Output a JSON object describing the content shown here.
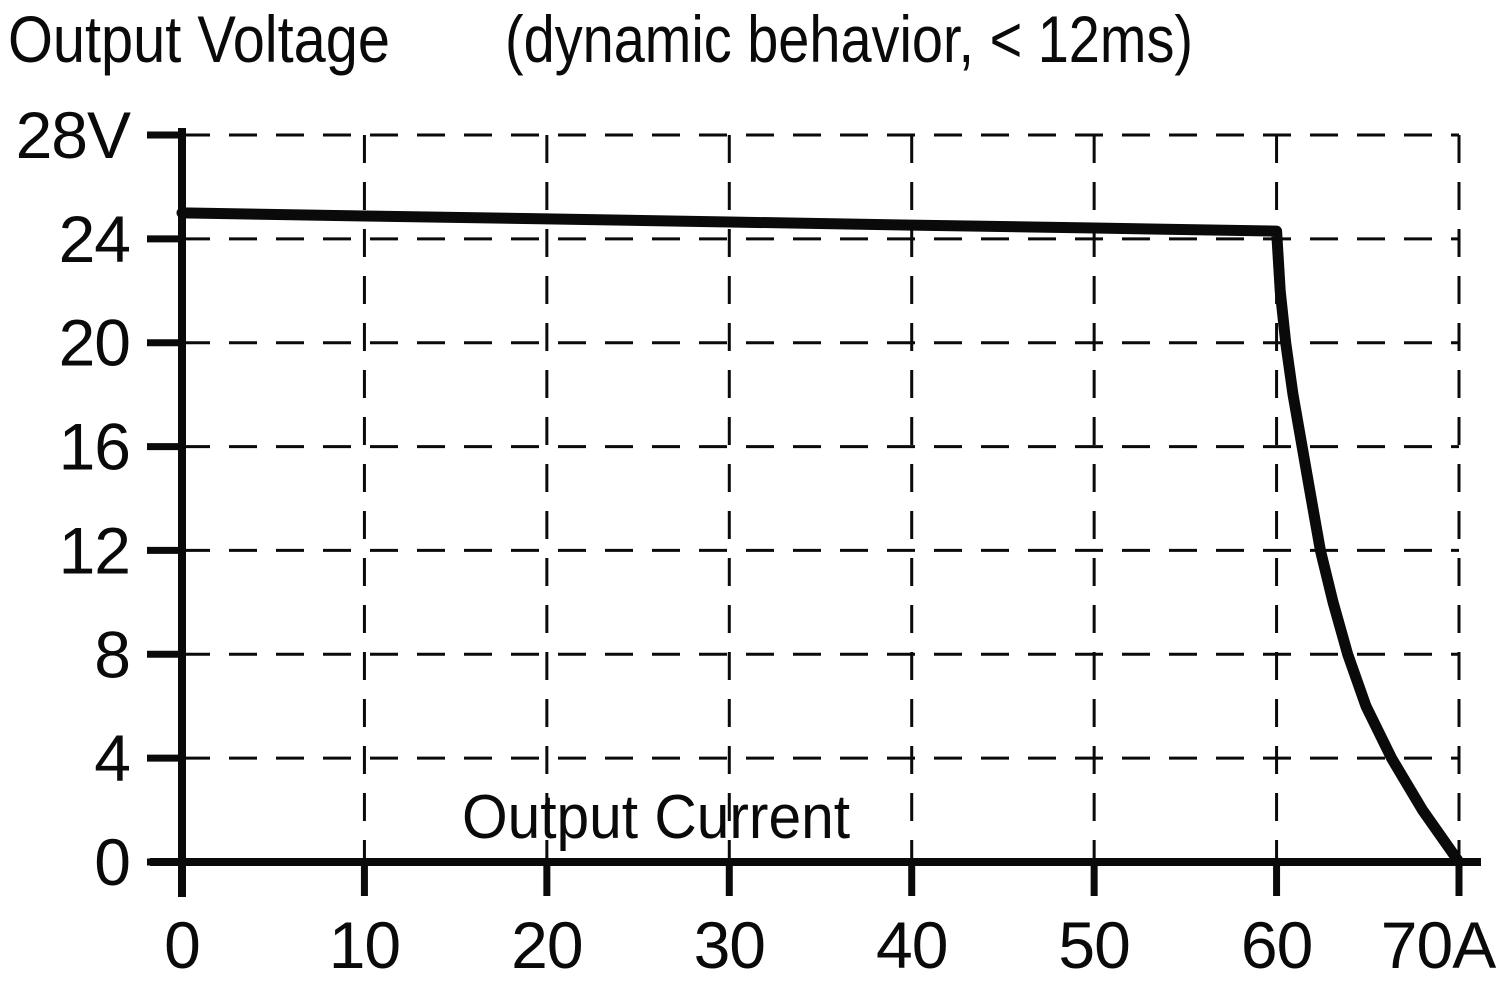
{
  "chart_data": {
    "type": "line",
    "title": "Output Voltage",
    "subtitle": "(dynamic behavior, < 12ms)",
    "xlabel": "Output Current",
    "ylabel": "Output Voltage",
    "x_unit": "A",
    "y_unit": "V",
    "xlim": [
      0,
      70
    ],
    "ylim": [
      0,
      28
    ],
    "x_ticks": [
      0,
      10,
      20,
      30,
      40,
      50,
      60,
      70
    ],
    "x_tick_labels": [
      "0",
      "10",
      "20",
      "30",
      "40",
      "50",
      "60",
      "70A"
    ],
    "y_ticks": [
      0,
      4,
      8,
      12,
      16,
      20,
      24,
      28
    ],
    "y_tick_labels": [
      "0",
      "4",
      "8",
      "12",
      "16",
      "20",
      "24",
      "28V"
    ],
    "grid": "dashed",
    "legend_position": "none",
    "line_color": "#0a0a0a",
    "background_color": "#ffffff",
    "series": [
      {
        "name": "output-voltage-vs-output-current",
        "points": [
          [
            0,
            25.0
          ],
          [
            10,
            24.88
          ],
          [
            20,
            24.77
          ],
          [
            30,
            24.65
          ],
          [
            40,
            24.53
          ],
          [
            50,
            24.42
          ],
          [
            60,
            24.3
          ],
          [
            60.2,
            22
          ],
          [
            60.5,
            20
          ],
          [
            60.9,
            18
          ],
          [
            61.4,
            16
          ],
          [
            61.9,
            14
          ],
          [
            62.4,
            12
          ],
          [
            63.1,
            10
          ],
          [
            63.9,
            8
          ],
          [
            64.9,
            6
          ],
          [
            66.3,
            4
          ],
          [
            68.0,
            2
          ],
          [
            70,
            0
          ]
        ]
      }
    ]
  }
}
